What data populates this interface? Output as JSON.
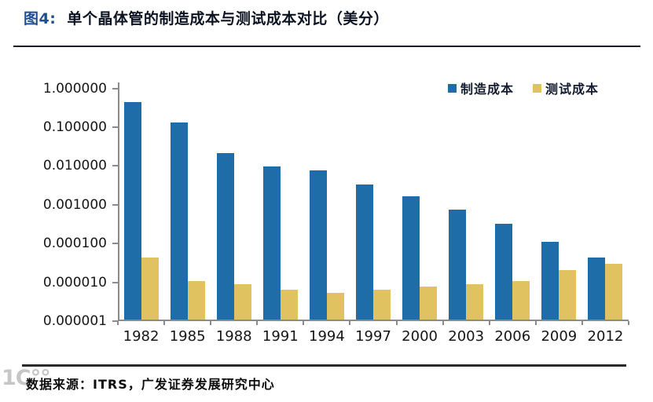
{
  "title": {
    "prefix": "图4:",
    "text": "单个晶体管的制造成本与测试成本对比（美分）"
  },
  "chart_data": {
    "type": "bar",
    "scale": "log",
    "title": "单个晶体管的制造成本与测试成本对比（美分）",
    "categories": [
      "1982",
      "1985",
      "1988",
      "1991",
      "1994",
      "1997",
      "2000",
      "2003",
      "2006",
      "2009",
      "2012"
    ],
    "series": [
      {
        "name": "制造成本",
        "color": "#1F6DA8",
        "values": [
          0.4,
          0.12,
          0.02,
          0.009,
          0.007,
          0.003,
          0.0015,
          0.0007,
          0.0003,
          0.0001,
          4e-05
        ]
      },
      {
        "name": "测试成本",
        "color": "#E0C261",
        "values": [
          4e-05,
          1e-05,
          8e-06,
          6e-06,
          5e-06,
          6e-06,
          7e-06,
          8e-06,
          1e-05,
          1.9e-05,
          2.8e-05
        ]
      }
    ],
    "ylim": [
      1e-06,
      1
    ],
    "ytick_labels": [
      "1.000000",
      "0.100000",
      "0.010000",
      "0.001000",
      "0.000100",
      "0.000010",
      "0.000001"
    ],
    "grid": false,
    "legend_position": "top-right"
  },
  "source": {
    "text": "数据来源：ITRS，广发证券发展研究中心"
  },
  "watermark": {
    "text": "1C°°"
  },
  "colors": {
    "axis": "#8a8a8a",
    "title_prefix": "#1F4E8C",
    "divider": "#1c1c28"
  }
}
